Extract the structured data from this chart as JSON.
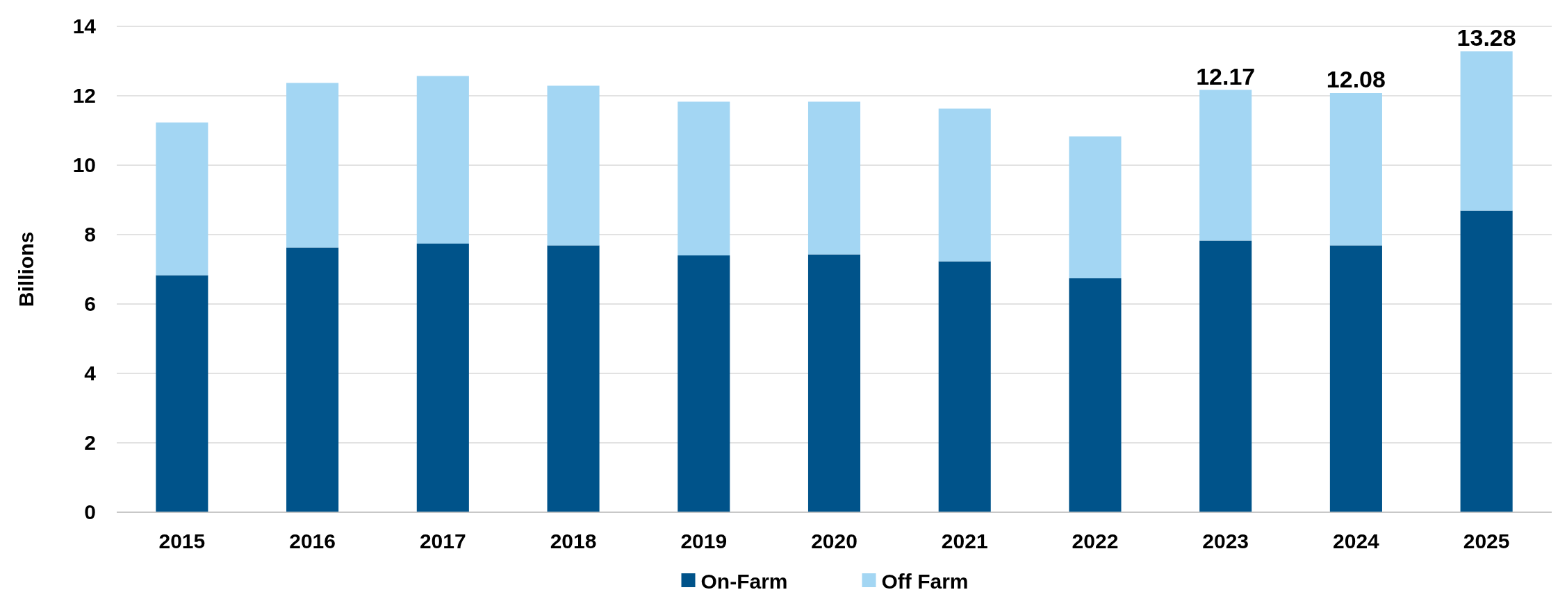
{
  "chart_data": {
    "type": "bar",
    "stacked": true,
    "ylabel": "Billions",
    "categories": [
      "2015",
      "2016",
      "2017",
      "2018",
      "2019",
      "2020",
      "2021",
      "2022",
      "2023",
      "2024",
      "2025"
    ],
    "series": [
      {
        "name": "On-Farm",
        "color": "#00538a",
        "values": [
          6.83,
          7.63,
          7.74,
          7.69,
          7.4,
          7.43,
          7.23,
          6.74,
          7.83,
          7.69,
          8.69
        ]
      },
      {
        "name": "Off Farm",
        "color": "#a3d6f3",
        "values": [
          4.4,
          4.74,
          4.83,
          4.6,
          4.43,
          4.4,
          4.4,
          4.09,
          4.34,
          4.39,
          4.59
        ]
      }
    ],
    "totals": [
      null,
      null,
      null,
      null,
      null,
      null,
      null,
      null,
      "12.17",
      "12.08",
      "13.28"
    ],
    "ylim": [
      0,
      14
    ],
    "yticks": [
      0,
      2,
      4,
      6,
      8,
      10,
      12,
      14
    ],
    "grid": "y",
    "legend": "bottom"
  }
}
